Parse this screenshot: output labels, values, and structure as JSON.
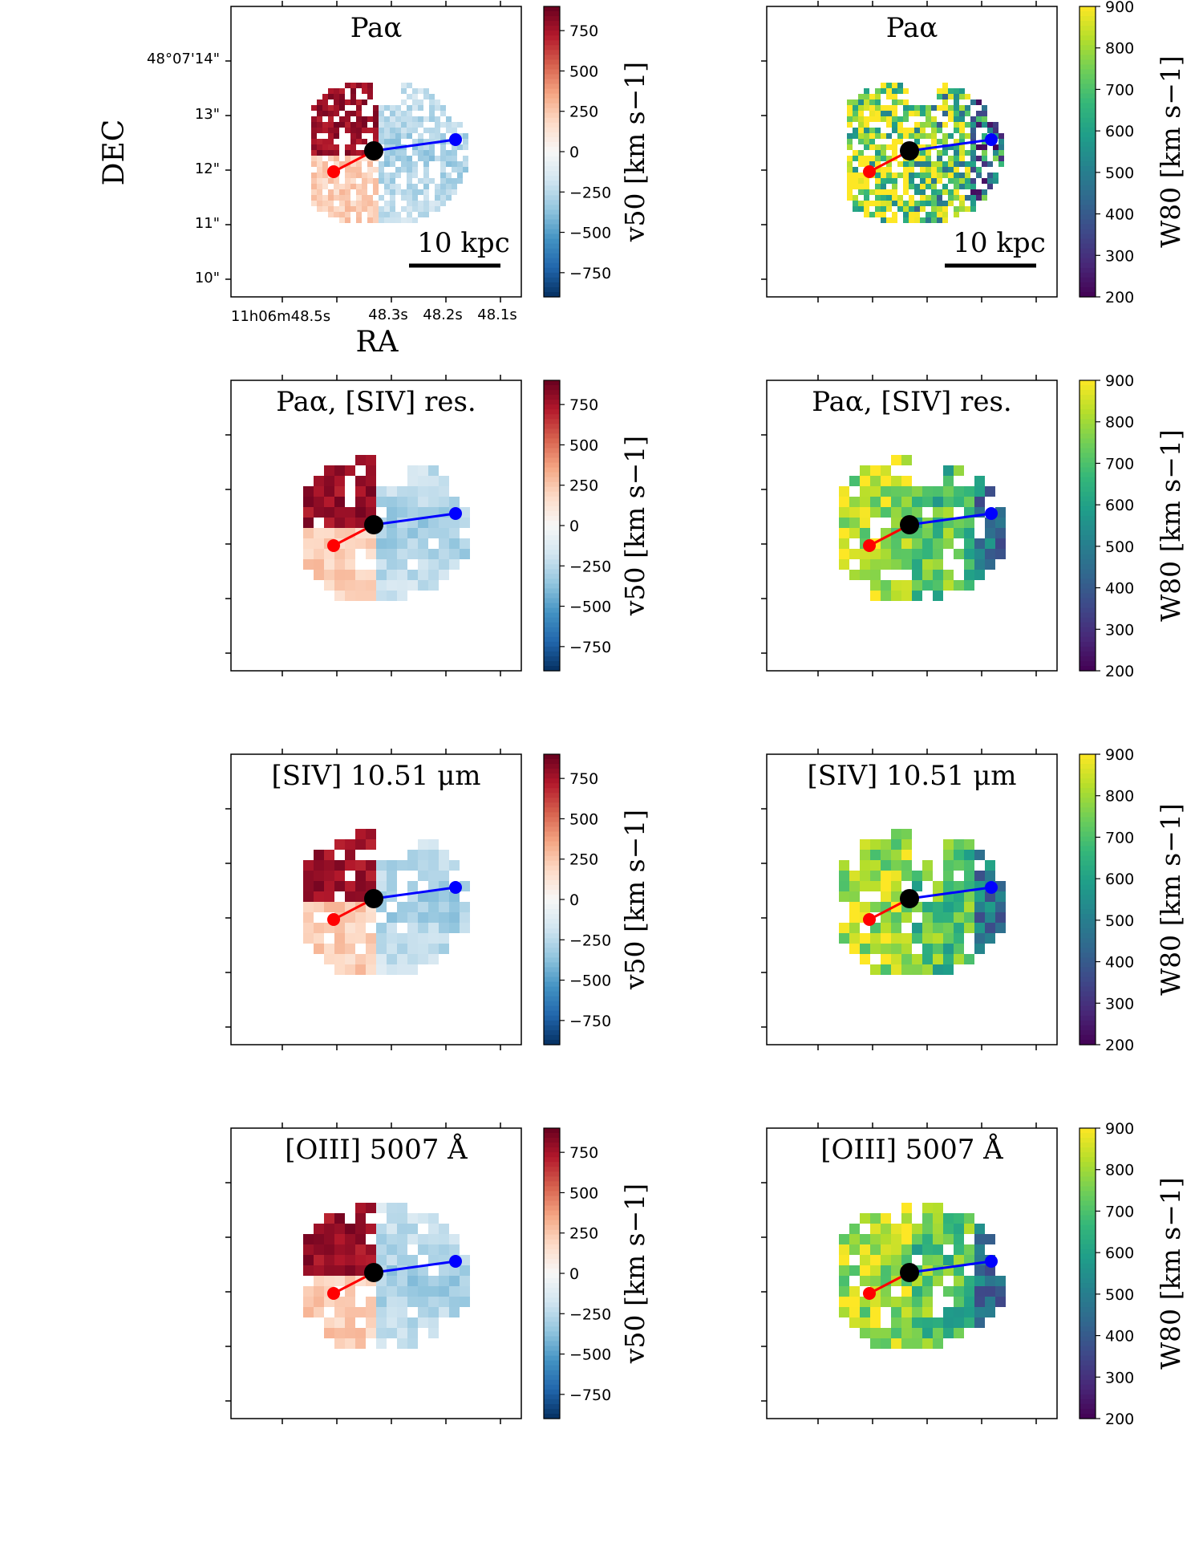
{
  "figure": {
    "dec_label": "DEC",
    "ra_label": "RA",
    "dec_ticks": [
      "48°07'14\"",
      "13\"",
      "12\"",
      "11\"",
      "10\""
    ],
    "ra_tick_main": "11h06m48.5s",
    "ra_tick_1": "48.3s",
    "ra_tick_2": "48.2s",
    "ra_tick_3": "48.1s",
    "scale_bar_label": "10 kpc"
  },
  "chart_data": [
    {
      "type": "heatmap",
      "panel": "v50",
      "title": "Paα",
      "colormap": "RdBu_r",
      "colorbar_label": "v50 [km s−1]",
      "clim": [
        -900,
        900
      ],
      "colorbar_ticks": [
        "750",
        "500",
        "250",
        "0",
        "−250",
        "−500",
        "−750"
      ],
      "colorbar_tick_values": [
        750,
        500,
        250,
        0,
        -250,
        -500,
        -750
      ]
    },
    {
      "type": "heatmap",
      "panel": "W80",
      "title": "Paα",
      "colormap": "viridis",
      "colorbar_label": "W80 [km s−1]",
      "clim": [
        200,
        900
      ],
      "colorbar_ticks": [
        "900",
        "800",
        "700",
        "600",
        "500",
        "400",
        "300",
        "200"
      ],
      "colorbar_tick_values": [
        900,
        800,
        700,
        600,
        500,
        400,
        300,
        200
      ]
    },
    {
      "type": "heatmap",
      "panel": "v50",
      "title": "Paα, [SIV] res.",
      "colormap": "RdBu_r",
      "colorbar_label": "v50 [km s−1]",
      "clim": [
        -900,
        900
      ],
      "colorbar_ticks": [
        "750",
        "500",
        "250",
        "0",
        "−250",
        "−500",
        "−750"
      ],
      "colorbar_tick_values": [
        750,
        500,
        250,
        0,
        -250,
        -500,
        -750
      ]
    },
    {
      "type": "heatmap",
      "panel": "W80",
      "title": "Paα, [SIV] res.",
      "colormap": "viridis",
      "colorbar_label": "W80 [km s−1]",
      "clim": [
        200,
        900
      ],
      "colorbar_ticks": [
        "900",
        "800",
        "700",
        "600",
        "500",
        "400",
        "300",
        "200"
      ],
      "colorbar_tick_values": [
        900,
        800,
        700,
        600,
        500,
        400,
        300,
        200
      ]
    },
    {
      "type": "heatmap",
      "panel": "v50",
      "title": "[SIV] 10.51 μm",
      "colormap": "RdBu_r",
      "colorbar_label": "v50 [km s−1]",
      "clim": [
        -900,
        900
      ],
      "colorbar_ticks": [
        "750",
        "500",
        "250",
        "0",
        "−250",
        "−500",
        "−750"
      ],
      "colorbar_tick_values": [
        750,
        500,
        250,
        0,
        -250,
        -500,
        -750
      ]
    },
    {
      "type": "heatmap",
      "panel": "W80",
      "title": "[SIV] 10.51 μm",
      "colormap": "viridis",
      "colorbar_label": "W80 [km s−1]",
      "clim": [
        200,
        900
      ],
      "colorbar_ticks": [
        "900",
        "800",
        "700",
        "600",
        "500",
        "400",
        "300",
        "200"
      ],
      "colorbar_tick_values": [
        900,
        800,
        700,
        600,
        500,
        400,
        300,
        200
      ]
    },
    {
      "type": "heatmap",
      "panel": "v50",
      "title": "[OIII] 5007 Å",
      "colormap": "RdBu_r",
      "colorbar_label": "v50 [km s−1]",
      "clim": [
        -900,
        900
      ],
      "colorbar_ticks": [
        "750",
        "500",
        "250",
        "0",
        "−250",
        "−500",
        "−750"
      ],
      "colorbar_tick_values": [
        750,
        500,
        250,
        0,
        -250,
        -500,
        -750
      ]
    },
    {
      "type": "heatmap",
      "panel": "W80",
      "title": "[OIII] 5007 Å",
      "colormap": "viridis",
      "colorbar_label": "W80 [km s−1]",
      "clim": [
        200,
        900
      ],
      "colorbar_ticks": [
        "900",
        "800",
        "700",
        "600",
        "500",
        "400",
        "300",
        "200"
      ],
      "colorbar_tick_values": [
        900,
        800,
        700,
        600,
        500,
        400,
        300,
        200
      ]
    }
  ]
}
